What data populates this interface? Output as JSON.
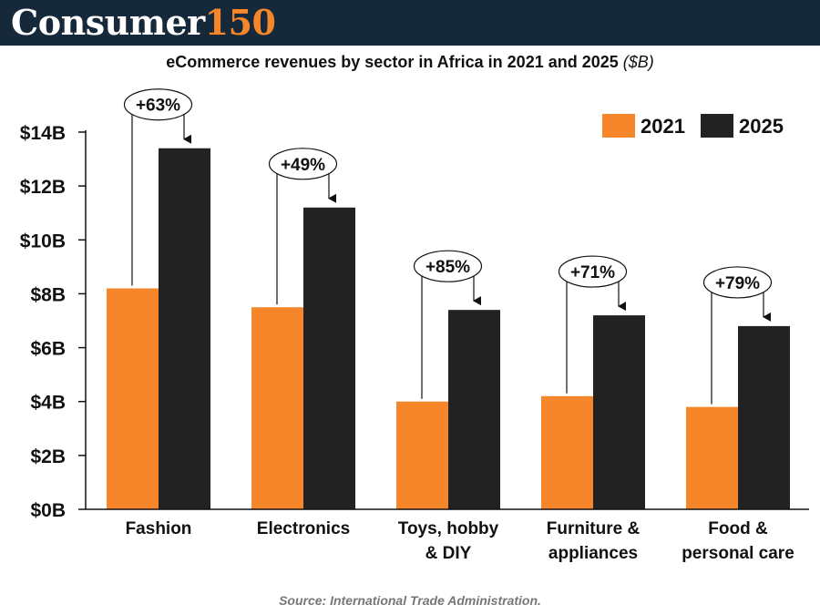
{
  "header": {
    "logo_word": "Consumer",
    "logo_number": "150"
  },
  "source": "Source: International Trade Administration.",
  "colors": {
    "header_bg": "#16293a",
    "logo_accent": "#f5872a",
    "series_2021": "#f5872a",
    "series_2025": "#222222"
  },
  "chart_data": {
    "type": "bar",
    "title": "eCommerce revenues by sector in Africa in 2021 and 2025",
    "title_unit": "($B)",
    "categories": [
      [
        "Fashion"
      ],
      [
        "Electronics"
      ],
      [
        "Toys, hobby",
        "&  DIY"
      ],
      [
        "Furniture &",
        "appliances"
      ],
      [
        "Food &",
        "personal care"
      ]
    ],
    "series": [
      {
        "name": "2021",
        "color": "#f5872a",
        "values": [
          8.2,
          7.5,
          4.0,
          4.2,
          3.8
        ]
      },
      {
        "name": "2025",
        "color": "#222222",
        "values": [
          13.4,
          11.2,
          7.4,
          7.2,
          6.8
        ]
      }
    ],
    "growth_labels": [
      "+63%",
      "+49%",
      "+85%",
      "+71%",
      "+79%"
    ],
    "y_ticks": [
      "$0B",
      "$2B",
      "$4B",
      "$6B",
      "$8B",
      "$10B",
      "$12B",
      "$14B"
    ],
    "y_tick_values": [
      0,
      2,
      4,
      6,
      8,
      10,
      12,
      14
    ],
    "ylim": [
      0,
      14
    ],
    "grid": false,
    "legend": "top-right"
  }
}
